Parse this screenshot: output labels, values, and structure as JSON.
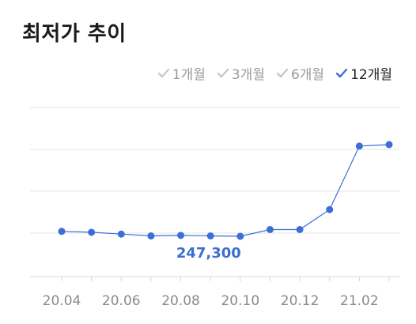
{
  "title": "최저가 추이",
  "periods": [
    {
      "label": "1개월",
      "active": false
    },
    {
      "label": "3개월",
      "active": false
    },
    {
      "label": "6개월",
      "active": false
    },
    {
      "label": "12개월",
      "active": true
    }
  ],
  "colors": {
    "line": "#3b6fd6",
    "grid": "#e6e6e6",
    "inactive": "#c8c8c8",
    "active_check": "#3b6fd6"
  },
  "chart_data": {
    "type": "line",
    "x_ticks": [
      "20.04",
      "20.06",
      "20.08",
      "20.10",
      "20.12",
      "21.02"
    ],
    "x": [
      "20.04",
      "20.05",
      "20.06",
      "20.07",
      "20.08",
      "20.09",
      "20.10",
      "20.11",
      "20.12",
      "21.01",
      "21.02",
      "21.03"
    ],
    "y": [
      250000,
      249500,
      248500,
      247500,
      247800,
      247500,
      247300,
      251000,
      251000,
      262000,
      297000,
      297800
    ],
    "annotation": {
      "label": "247,300",
      "index": 6
    },
    "grid": true,
    "title": "최저가 추이"
  }
}
